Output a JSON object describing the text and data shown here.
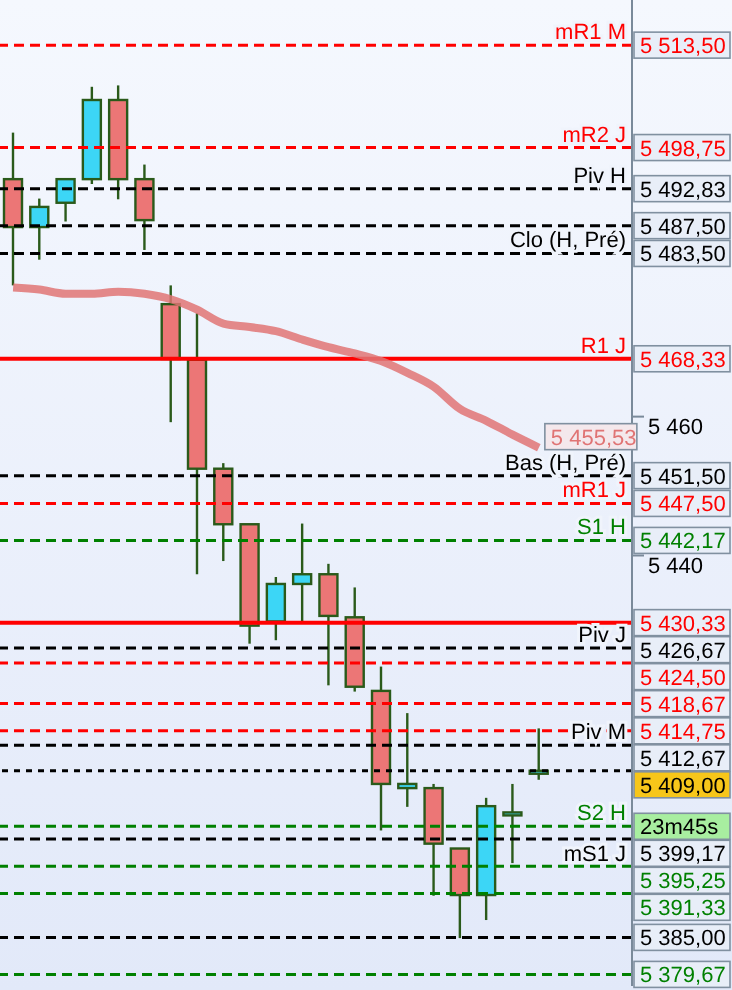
{
  "chart_data": {
    "type": "candlestick",
    "categories": [
      null,
      null,
      null,
      null,
      null,
      null,
      null,
      null,
      null,
      null,
      null,
      null,
      null,
      null,
      null,
      null,
      null,
      null,
      null,
      null,
      null
    ],
    "ohlc": [
      [
        5494.2,
        5500.9,
        5478.9,
        5487.3
      ],
      [
        5487.3,
        5491.4,
        5482.6,
        5490.2
      ],
      [
        5490.8,
        5494.2,
        5488.1,
        5494.2
      ],
      [
        5494.2,
        5507.5,
        5493.5,
        5505.6
      ],
      [
        5505.6,
        5507.7,
        5491.3,
        5494.2
      ],
      [
        5494.2,
        5496.3,
        5484.0,
        5488.3
      ],
      [
        5476.2,
        5478.9,
        5459.2,
        5468.3
      ],
      [
        5468.2,
        5474.9,
        5437.3,
        5452.5
      ],
      [
        5452.5,
        5453.3,
        5439.2,
        5444.5
      ],
      [
        5444.5,
        5444.5,
        5427.3,
        5429.9
      ],
      [
        5430.5,
        5436.9,
        5427.8,
        5435.9
      ],
      [
        5435.9,
        5444.6,
        5430.5,
        5437.3
      ],
      [
        5437.3,
        5438.8,
        5421.3,
        5431.3
      ],
      [
        5431.1,
        5435.4,
        5420.4,
        5421.1
      ],
      [
        5420.5,
        5424.0,
        5400.4,
        5407.1
      ],
      [
        5406.5,
        5417.3,
        5403.8,
        5407.1
      ],
      [
        5406.5,
        5407.1,
        5391.0,
        5398.5
      ],
      [
        5397.8,
        5397.8,
        5384.9,
        5391.1
      ],
      [
        5391.1,
        5405.1,
        5387.5,
        5403.9
      ],
      [
        5403.0,
        5407.1,
        5395.7,
        5403.0
      ],
      [
        5409.0,
        5415.1,
        5407.7,
        5409.0
      ]
    ],
    "colors": [
      "#ec7676",
      "#3cd6f6",
      "#3cd6f6",
      "#3cd6f6",
      "#ec7676",
      "#ec7676",
      "#ec7676",
      "#ec7676",
      "#ec7676",
      "#ec7676",
      "#3cd6f6",
      "#3cd6f6",
      "#ec7676",
      "#ec7676",
      "#ec7676",
      "#3cd6f6",
      "#ec7676",
      "#ec7676",
      "#3cd6f6",
      "#3cd6f6",
      "#3cd6f6"
    ],
    "series": [
      {
        "type": "line",
        "color": "#e07474",
        "values": [
          5478.6,
          5478.3,
          5477.7,
          5477.7,
          5478.0,
          5477.7,
          5476.9,
          5475.4,
          5473.4,
          5472.9,
          5472.3,
          5471.1,
          5470.0,
          5469.1,
          5468.0,
          5466.3,
          5464.3,
          5461.1,
          5459.4,
          5457.4,
          5455.53
        ],
        "value_labels": [
          null,
          null,
          null,
          null,
          null,
          null,
          null,
          null,
          null,
          null,
          null,
          null,
          null,
          null,
          null,
          null,
          null,
          null,
          null,
          null,
          "5 455,53"
        ]
      }
    ],
    "ylim": [
      5378,
      5520
    ],
    "yticks": [
      {
        "value": 5440,
        "label": "5 440"
      },
      {
        "value": 5460,
        "label": "5 460"
      }
    ],
    "tick_labels": "y",
    "ref_lines": [
      {
        "axis": "y",
        "value": 5513.5,
        "label": "mR1 M",
        "color": "#ff0000",
        "line_style": "dashed"
      },
      {
        "axis": "y",
        "value": 5498.75,
        "label": "mR2 J",
        "color": "#ff0000",
        "line_style": "dashed"
      },
      {
        "axis": "y",
        "value": 5492.83,
        "label": "Piv H",
        "color": "#000000",
        "line_style": "dashed"
      },
      {
        "axis": "y",
        "value": 5487.5,
        "color": "#000000",
        "line_style": "dashed"
      },
      {
        "axis": "y",
        "value": 5483.5,
        "label": "Clo (H, Pré)",
        "color": "#000000",
        "line_style": "dashed"
      },
      {
        "axis": "y",
        "value": 5468.33,
        "label": "R1 J",
        "color": "#ff0000",
        "line_style": "solid"
      },
      {
        "axis": "y",
        "value": 5451.5,
        "label": "Bas (H, Pré)",
        "color": "#000000",
        "line_style": "dashed"
      },
      {
        "axis": "y",
        "value": 5447.5,
        "label": "mR1 J",
        "color": "#ff0000",
        "line_style": "dashed"
      },
      {
        "axis": "y",
        "value": 5442.17,
        "label": "S1 H",
        "color": "#008000",
        "line_style": "dashed"
      },
      {
        "axis": "y",
        "value": 5430.33,
        "color": "#ff0000",
        "line_style": "solid"
      },
      {
        "axis": "y",
        "value": 5426.67,
        "label": "Piv J",
        "color": "#000000",
        "line_style": "dashed"
      },
      {
        "axis": "y",
        "value": 5424.5,
        "color": "#ff0000",
        "line_style": "dashed"
      },
      {
        "axis": "y",
        "value": 5418.67,
        "color": "#ff0000",
        "line_style": "dashed"
      },
      {
        "axis": "y",
        "value": 5414.75,
        "color": "#ff0000",
        "line_style": "dashed"
      },
      {
        "axis": "y",
        "value": 5412.67,
        "label": "Piv M",
        "color": "#000000",
        "line_style": "dashed"
      },
      {
        "axis": "y",
        "value": 5409,
        "color": "#000000",
        "line_style": "dotted"
      },
      {
        "axis": "y",
        "value": 5399.17,
        "label": "mS1 J",
        "color": "#000000",
        "line_style": "dashed"
      },
      {
        "axis": "y",
        "value": 5395.25,
        "color": "#008000",
        "line_style": "dashed"
      },
      {
        "axis": "y",
        "value": 5391.33,
        "color": "#008000",
        "line_style": "dashed"
      },
      {
        "axis": "y",
        "value": 5385,
        "color": "#000000",
        "line_style": "dashed"
      },
      {
        "axis": "y",
        "value": 5379.67,
        "color": "#008000",
        "line_style": "dashed"
      },
      {
        "axis": "y",
        "value": 5401,
        "label": "S2 H",
        "color": "#008000",
        "line_style": "dashed"
      }
    ],
    "annotations": [
      "5 513,50",
      "5 498,75",
      "5 492,83",
      "5 487,50",
      "5 483,50",
      "5 468,33",
      "5 451,50",
      "5 447,50",
      "5 442,17",
      "5 430,33",
      "5 426,67",
      "5 424,50",
      "5 418,67",
      "5 414,75",
      "5 412,67",
      "5 409,00",
      "5 399,17",
      "5 395,25",
      "5 391,33",
      "5 385,00",
      "5 379,67",
      "23m45s"
    ]
  }
}
